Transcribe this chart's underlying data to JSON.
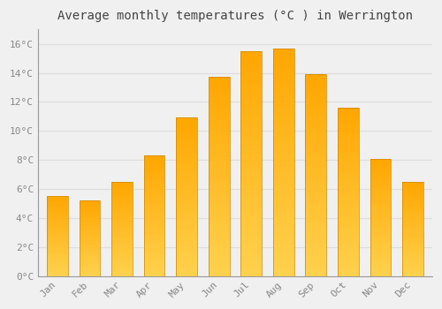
{
  "title": "Average monthly temperatures (°C ) in Werrington",
  "months": [
    "Jan",
    "Feb",
    "Mar",
    "Apr",
    "May",
    "Jun",
    "Jul",
    "Aug",
    "Sep",
    "Oct",
    "Nov",
    "Dec"
  ],
  "values": [
    5.5,
    5.2,
    6.5,
    8.3,
    10.9,
    13.7,
    15.5,
    15.7,
    13.9,
    11.6,
    8.1,
    6.5
  ],
  "bar_color": "#FFA500",
  "bar_color_light": "#FFD04D",
  "bar_edge_color": "#CC8800",
  "background_color": "#F0F0F0",
  "grid_color": "#DDDDDD",
  "ylim": [
    0,
    17
  ],
  "ytick_interval": 2,
  "title_fontsize": 10,
  "tick_fontsize": 8,
  "tick_label_color": "#888888",
  "title_color": "#444444"
}
